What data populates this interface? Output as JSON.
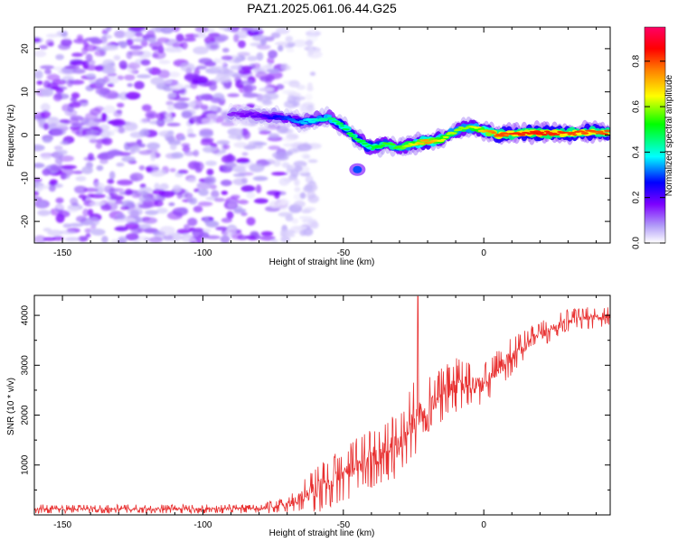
{
  "title": "PAZ1.2025.061.06.44.G25",
  "chart_data": [
    {
      "type": "heatmap",
      "name": "spectrogram",
      "xlabel": "Height of straight line (km)",
      "ylabel": "Frequency (Hz)",
      "xlim": [
        -160,
        45
      ],
      "ylim": [
        -25,
        25
      ],
      "xticks": [
        -150,
        -100,
        -50,
        0
      ],
      "yticks": [
        -20,
        -10,
        0,
        10,
        20
      ],
      "colorbar": {
        "label": "Normalized spectral amplitude",
        "range": [
          0,
          0.95
        ],
        "ticks": [
          0.0,
          0.2,
          0.4,
          0.6,
          0.8
        ],
        "colors": [
          "#ffffff",
          "#b19cf8",
          "#7d00ff",
          "#0000ff",
          "#00ffff",
          "#00ff00",
          "#ffff00",
          "#ff8000",
          "#ff0000",
          "#ff0066"
        ]
      },
      "noise_region_x": [
        -160,
        -72
      ],
      "ridge": {
        "x": [
          -90,
          -80,
          -70,
          -65,
          -60,
          -55,
          -50,
          -45,
          -40,
          -35,
          -30,
          -25,
          -20,
          -15,
          -10,
          -5,
          0,
          5,
          10,
          20,
          30,
          40,
          45
        ],
        "y": [
          5,
          4.5,
          4,
          3,
          3.5,
          4,
          2,
          -1,
          -3,
          -2,
          -3,
          -2,
          -1.5,
          -1,
          1,
          2,
          1,
          0,
          0.3,
          0.5,
          0.3,
          0.8,
          0.5
        ],
        "level": [
          0.15,
          0.2,
          0.3,
          0.35,
          0.4,
          0.45,
          0.5,
          0.5,
          0.5,
          0.55,
          0.55,
          0.65,
          0.75,
          0.65,
          0.6,
          0.6,
          0.7,
          0.8,
          0.82,
          0.85,
          0.82,
          0.8,
          0.8
        ]
      },
      "secondary_blob": {
        "x": -45,
        "y": -8,
        "level": 0.3
      }
    },
    {
      "type": "line",
      "name": "snr",
      "xlabel": "Height of straight line (km)",
      "ylabel": "SNR (10 * v/v)",
      "xlim": [
        -160,
        45
      ],
      "ylim": [
        0,
        4400
      ],
      "xticks": [
        -150,
        -100,
        -50,
        0
      ],
      "yticks": [
        1000,
        2000,
        3000,
        4000
      ],
      "color": "#e83030",
      "envelope": {
        "x": [
          -160,
          -80,
          -70,
          -60,
          -50,
          -40,
          -30,
          -25,
          -20,
          -10,
          0,
          10,
          20,
          30,
          45
        ],
        "mean": [
          120,
          120,
          200,
          500,
          800,
          1150,
          1400,
          1900,
          2200,
          2600,
          2600,
          3200,
          3600,
          3900,
          4000
        ],
        "jitter": [
          80,
          80,
          150,
          450,
          500,
          550,
          600,
          700,
          500,
          500,
          400,
          350,
          250,
          200,
          200
        ]
      },
      "spike": {
        "x": -23.5,
        "y": 4380
      }
    }
  ]
}
